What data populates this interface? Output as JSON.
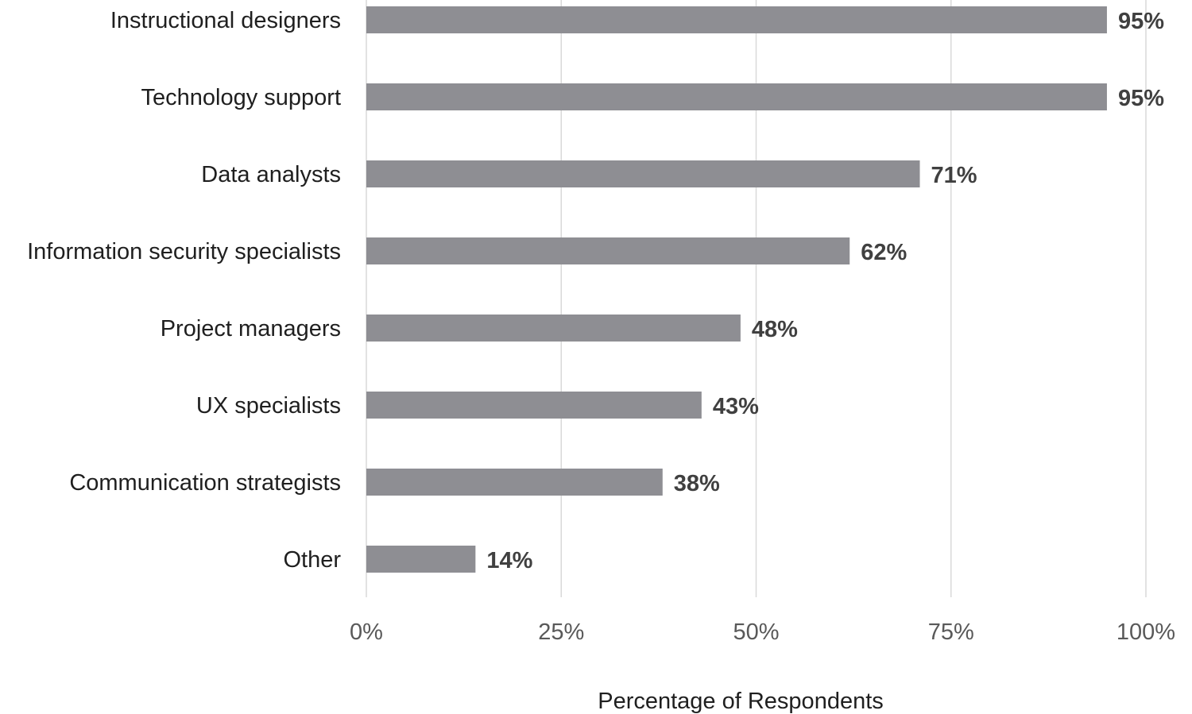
{
  "chart_data": {
    "type": "bar",
    "orientation": "horizontal",
    "categories": [
      "Instructional designers",
      "Technology support",
      "Data analysts",
      "Information security specialists",
      "Project managers",
      "UX specialists",
      "Communication strategists",
      "Other"
    ],
    "values": [
      95,
      95,
      71,
      62,
      48,
      43,
      38,
      14
    ],
    "data_labels": [
      "95%",
      "95%",
      "71%",
      "62%",
      "48%",
      "43%",
      "38%",
      "14%"
    ],
    "xlabel": "Percentage of Respondents",
    "ylabel": "",
    "xlim": [
      0,
      100
    ],
    "xticks": [
      0,
      25,
      50,
      75,
      100
    ],
    "xtick_labels": [
      "0%",
      "25%",
      "50%",
      "75%",
      "100%"
    ],
    "grid": "vertical",
    "bar_color": "#8e8e93",
    "grid_color": "#d9d9d9"
  }
}
